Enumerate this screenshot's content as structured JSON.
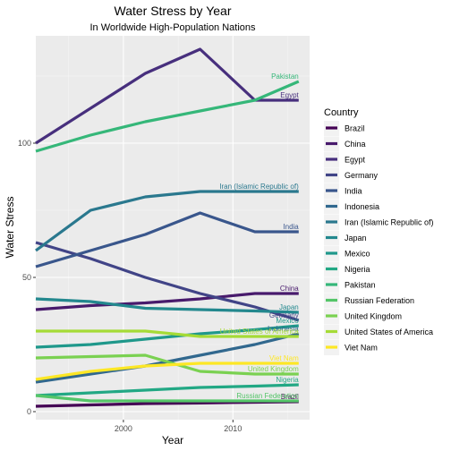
{
  "chart_data": {
    "type": "line",
    "title": "Water Stress by Year",
    "subtitle": "In Worldwide High-Population Nations",
    "xlabel": "Year",
    "ylabel": "Water Stress",
    "xlim": [
      1992,
      2017
    ],
    "ylim": [
      -3,
      140
    ],
    "x_ticks": [
      2000,
      2010
    ],
    "y_ticks": [
      0,
      50,
      100
    ],
    "grid": true,
    "legend": {
      "title": "Country",
      "position": "right"
    },
    "series": [
      {
        "name": "Brazil",
        "color": "#440154",
        "x": [
          1992,
          1997,
          2002,
          2007,
          2012,
          2016
        ],
        "values": [
          2,
          2.5,
          3,
          3.2,
          3.5,
          3.7
        ],
        "end_label": "Brazil"
      },
      {
        "name": "China",
        "color": "#481A6C",
        "x": [
          1992,
          1997,
          2002,
          2007,
          2012,
          2016
        ],
        "values": [
          38,
          39.5,
          40.5,
          42,
          44,
          44
        ],
        "end_label": "China"
      },
      {
        "name": "Egypt",
        "color": "#472F7D",
        "x": [
          1992,
          1997,
          2002,
          2007,
          2012,
          2016
        ],
        "values": [
          100,
          113,
          126,
          135,
          116,
          116
        ],
        "end_label": "Egypt"
      },
      {
        "name": "Germany",
        "color": "#414487",
        "x": [
          1992,
          1997,
          2002,
          2007,
          2012,
          2016
        ],
        "values": [
          63,
          57,
          50,
          44,
          39,
          34
        ],
        "end_label": "Germany"
      },
      {
        "name": "India",
        "color": "#39568C",
        "x": [
          1992,
          1997,
          2002,
          2007,
          2012,
          2016
        ],
        "values": [
          54,
          60,
          66,
          74,
          67,
          67
        ],
        "end_label": "India"
      },
      {
        "name": "Indonesia",
        "color": "#31688E",
        "x": [
          1992,
          1997,
          2002,
          2007,
          2012,
          2016
        ],
        "values": [
          11,
          14,
          17,
          21,
          25,
          29
        ],
        "end_label": "Indonesia"
      },
      {
        "name": "Iran (Islamic Republic of)",
        "color": "#2A788E",
        "x": [
          1992,
          1997,
          2002,
          2007,
          2012,
          2016
        ],
        "values": [
          60,
          75,
          80,
          82,
          82,
          82
        ],
        "end_label": "Iran (Islamic Republic of)"
      },
      {
        "name": "Japan",
        "color": "#23888E",
        "x": [
          1992,
          1997,
          2002,
          2007,
          2012,
          2016
        ],
        "values": [
          42,
          41,
          38.5,
          38,
          37.5,
          37
        ],
        "end_label": "Japan"
      },
      {
        "name": "Mexico",
        "color": "#1F988B",
        "x": [
          1992,
          1997,
          2002,
          2007,
          2012,
          2016
        ],
        "values": [
          24,
          25,
          27,
          29,
          30.5,
          32
        ],
        "end_label": "Mexico"
      },
      {
        "name": "Nigeria",
        "color": "#22A884",
        "x": [
          1992,
          1997,
          2002,
          2007,
          2012,
          2016
        ],
        "values": [
          6,
          7,
          8,
          9,
          9.5,
          10
        ],
        "end_label": "Nigeria"
      },
      {
        "name": "Pakistan",
        "color": "#35B779",
        "x": [
          1992,
          1997,
          2002,
          2007,
          2012,
          2016
        ],
        "values": [
          97,
          103,
          108,
          112,
          116,
          123
        ],
        "end_label": "Pakistan"
      },
      {
        "name": "Russian Federation",
        "color": "#54C568",
        "x": [
          1992,
          1997,
          2002,
          2007,
          2012,
          2016
        ],
        "values": [
          6,
          4,
          4,
          4,
          4,
          4
        ],
        "end_label": "Russian Federation"
      },
      {
        "name": "United Kingdom",
        "color": "#7AD151",
        "x": [
          1992,
          1997,
          2002,
          2007,
          2012,
          2016
        ],
        "values": [
          20,
          20.5,
          21,
          15,
          14,
          14
        ],
        "end_label": "United Kingdom"
      },
      {
        "name": "United States of America",
        "color": "#A5DB36",
        "x": [
          1992,
          1997,
          2002,
          2007,
          2012,
          2016
        ],
        "values": [
          30,
          30,
          30,
          28,
          28,
          28
        ],
        "end_label": "United States of America"
      },
      {
        "name": "Viet Nam",
        "color": "#FDE725",
        "x": [
          1992,
          1997,
          2002,
          2007,
          2012,
          2016
        ],
        "values": [
          12,
          15,
          17,
          18,
          18,
          18
        ],
        "end_label": "Viet Nam"
      }
    ]
  }
}
